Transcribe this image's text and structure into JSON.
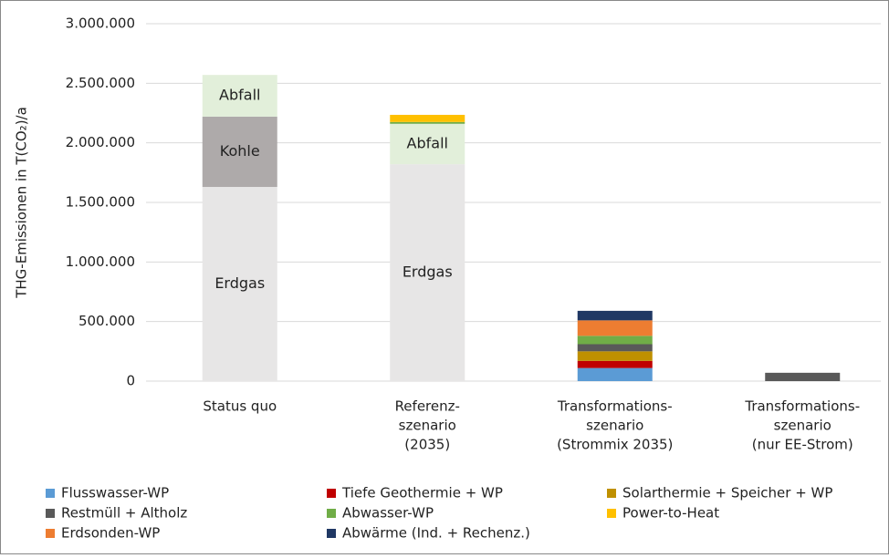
{
  "chart_data": {
    "type": "stacked_bar",
    "y_label": "THG-Emissionen in T(CO₂)/a",
    "categories": [
      [
        "Status quo"
      ],
      [
        "Referenz-",
        "szenario",
        "(2035)"
      ],
      [
        "Transformations-",
        "szenario",
        "(Strommix 2035)"
      ],
      [
        "Transformations-",
        "szenario",
        "(nur EE-Strom)"
      ]
    ],
    "ylim": [
      0,
      3000000
    ],
    "yticks": [
      0,
      {
        "value": 500000,
        "label": "500.000"
      },
      {
        "value": 1000000,
        "label": "1.000.000"
      },
      {
        "value": 1500000,
        "label": "1.500.000"
      },
      {
        "value": 2000000,
        "label": "2.000.000"
      },
      {
        "value": 2500000,
        "label": "2.500.000"
      },
      {
        "value": 3000000,
        "label": "3.000.000"
      }
    ],
    "grid": true,
    "direct_label_series": [
      {
        "name": "Erdgas",
        "color": "#e7e6e6",
        "values": [
          1630000,
          1820000,
          0,
          0
        ]
      },
      {
        "name": "Kohle",
        "color": "#aeaaaa",
        "values": [
          590000,
          0,
          0,
          0
        ]
      },
      {
        "name": "Abfall",
        "color": "#e2efda",
        "values": [
          350000,
          340000,
          0,
          0
        ]
      }
    ],
    "series": [
      {
        "name": "Flusswasser-WP",
        "color": "#5b9bd5",
        "values": [
          0,
          0,
          110000,
          0
        ]
      },
      {
        "name": "Tiefe Geothermie + WP",
        "color": "#c00000",
        "values": [
          0,
          0,
          60000,
          0
        ]
      },
      {
        "name": "Solarthermie + Speicher + WP",
        "color": "#bf9000",
        "values": [
          0,
          0,
          80000,
          0
        ]
      },
      {
        "name": "Restmüll + Altholz",
        "color": "#595959",
        "values": [
          0,
          0,
          60000,
          70000
        ]
      },
      {
        "name": "Abwasser-WP",
        "color": "#70ad47",
        "values": [
          0,
          15000,
          70000,
          0
        ]
      },
      {
        "name": "Power-to-Heat",
        "color": "#ffc000",
        "values": [
          0,
          60000,
          0,
          0
        ]
      },
      {
        "name": "Erdsonden-WP",
        "color": "#ed7d31",
        "values": [
          0,
          0,
          130000,
          0
        ]
      },
      {
        "name": "Abwärme (Ind. + Rechenz.)",
        "color": "#203864",
        "values": [
          0,
          0,
          80000,
          0
        ]
      }
    ]
  }
}
